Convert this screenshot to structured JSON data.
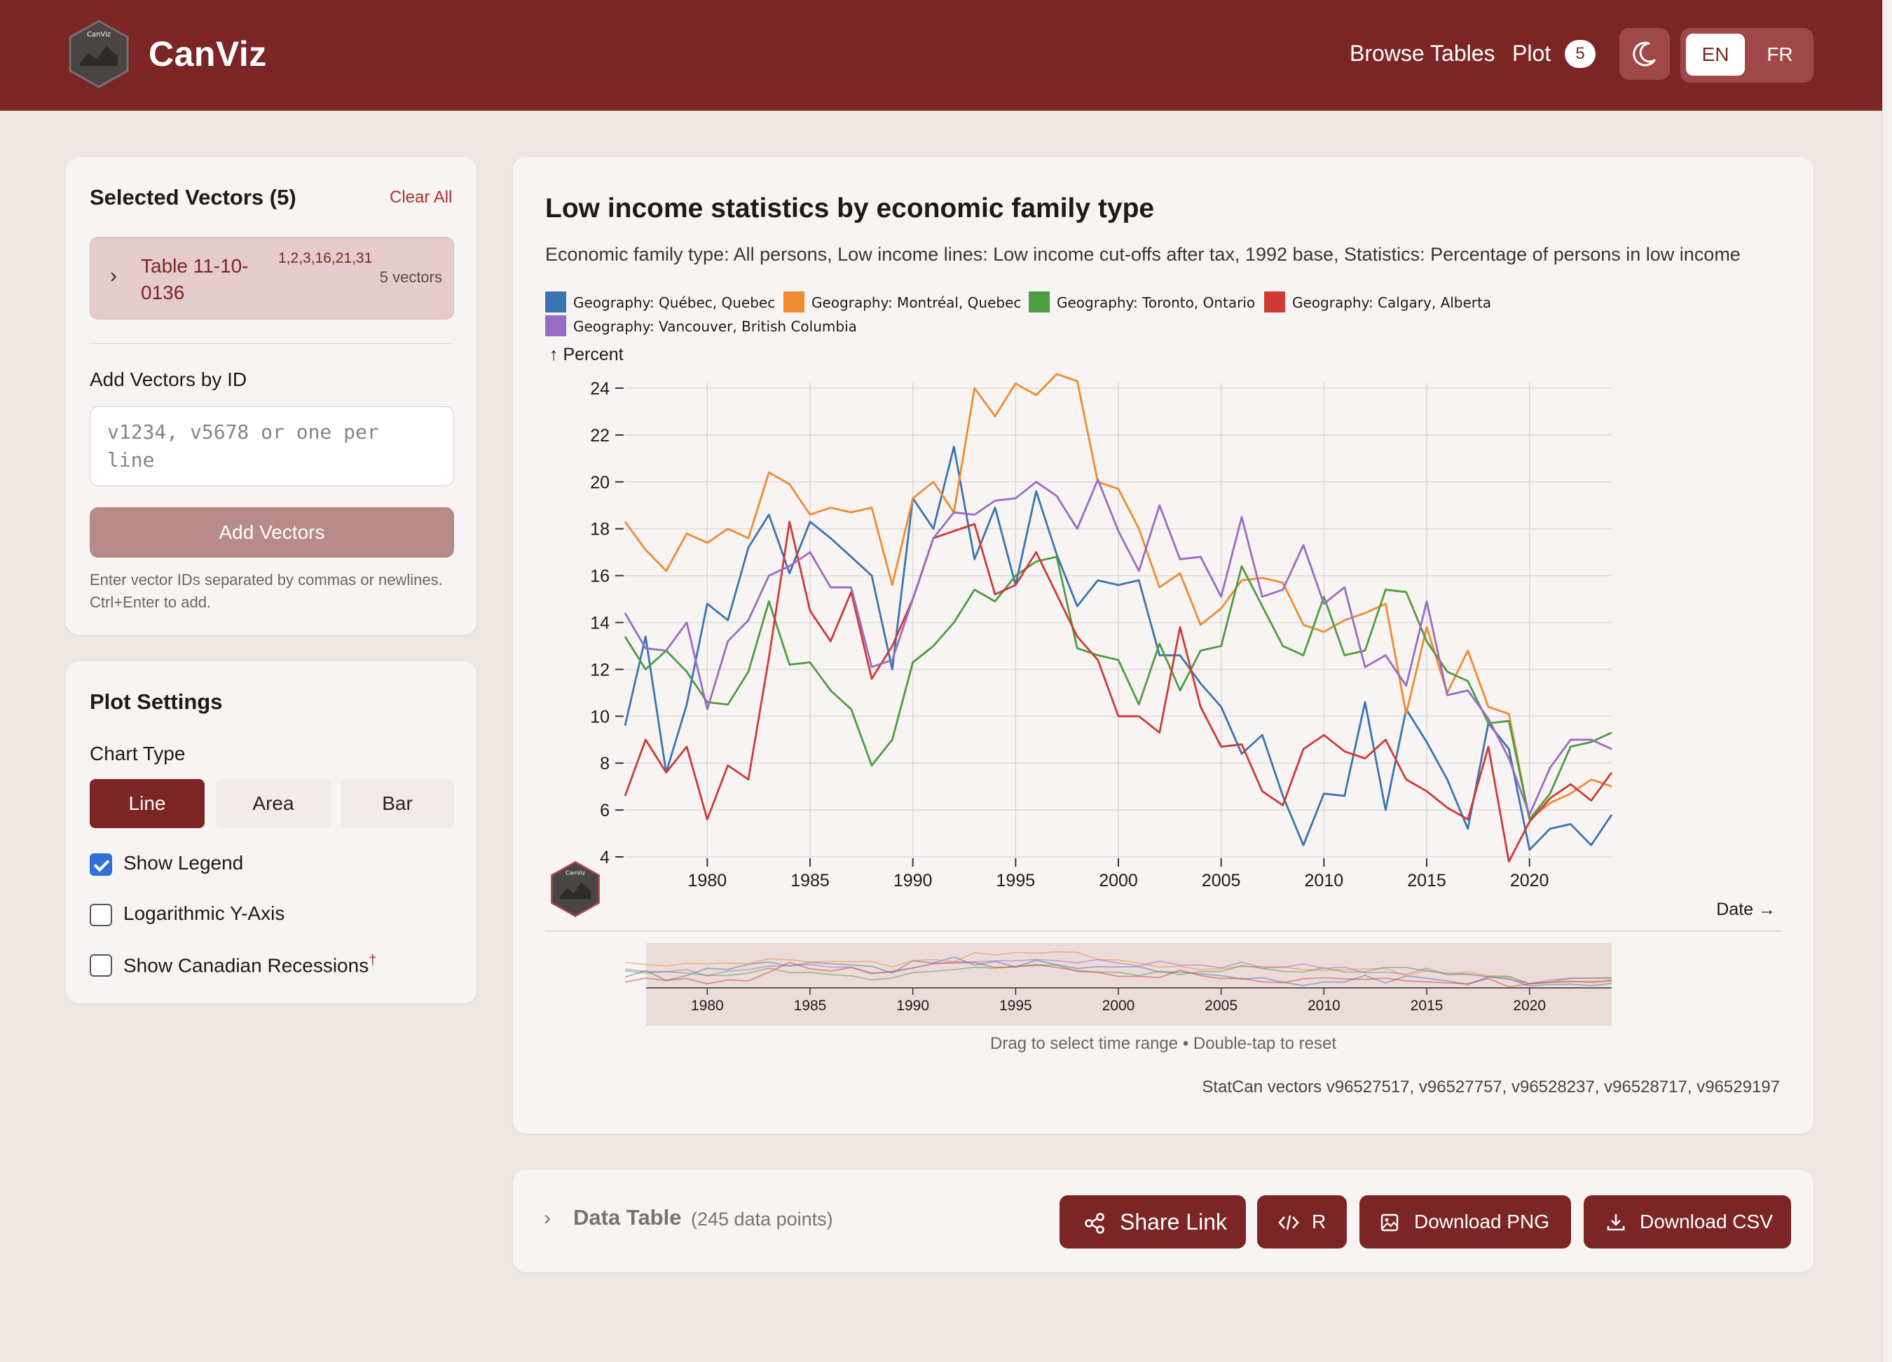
{
  "header": {
    "brand": "CanViz",
    "logo_text": "CanViz",
    "nav": {
      "browse": "Browse Tables",
      "plot": "Plot",
      "plot_count": "5"
    },
    "theme_icon": "moon-icon",
    "lang": {
      "en": "EN",
      "fr": "FR"
    }
  },
  "selected": {
    "title": "Selected Vectors (5)",
    "clear_all": "Clear All",
    "table_name": "Table 11-10-0136",
    "table_ids": "1,2,3,16,21,31",
    "table_count": "5 vectors"
  },
  "add_vectors": {
    "label": "Add Vectors by ID",
    "placeholder": "v1234, v5678 or one per line",
    "button": "Add Vectors",
    "hint": "Enter vector IDs separated by commas or newlines. Ctrl+Enter to add."
  },
  "plot_settings": {
    "title": "Plot Settings",
    "chart_type_label": "Chart Type",
    "types": [
      "Line",
      "Area",
      "Bar"
    ],
    "selected_type": "Line",
    "show_legend": "Show Legend",
    "log_axis": "Logarithmic Y-Axis",
    "recessions": "Show Canadian Recessions",
    "recessions_mark": "†",
    "show_legend_checked": true,
    "log_axis_checked": false,
    "recessions_checked": false
  },
  "chart_meta": {
    "brush_caption": "Drag to select time range • Double-tap to reset",
    "vectors_note": "StatCan vectors v96527517, v96527757, v96528237, v96528717, v96529197"
  },
  "data_table": {
    "title": "Data Table",
    "count": "(245 data points)",
    "buttons": {
      "share": "Share Link",
      "r": "R",
      "png": "Download PNG",
      "csv": "Download CSV"
    }
  },
  "colors": {
    "brand": "#7b2525",
    "series": [
      "#3a74b4",
      "#f28a32",
      "#4c9e3f",
      "#d03a34",
      "#9a6bc4"
    ]
  },
  "chart_data": {
    "type": "line",
    "title": "Low income statistics by economic family type",
    "subtitle": "Economic family type: All persons, Low income lines: Low income cut-offs after tax, 1992 base, Statistics: Percentage of persons in low income",
    "xlabel": "Date",
    "ylabel": "Percent",
    "xlim": [
      1976,
      2024
    ],
    "ylim": [
      4,
      24
    ],
    "xticks": [
      1980,
      1985,
      1990,
      1995,
      2000,
      2005,
      2010,
      2015,
      2020
    ],
    "yticks": [
      4,
      6,
      8,
      10,
      12,
      14,
      16,
      18,
      20,
      22,
      24
    ],
    "legend": "top-left",
    "grid": true,
    "x": [
      1976,
      1977,
      1978,
      1979,
      1980,
      1981,
      1982,
      1983,
      1984,
      1985,
      1986,
      1987,
      1988,
      1989,
      1990,
      1991,
      1992,
      1993,
      1994,
      1995,
      1996,
      1997,
      1998,
      1999,
      2000,
      2001,
      2002,
      2003,
      2004,
      2005,
      2006,
      2007,
      2008,
      2009,
      2010,
      2011,
      2012,
      2013,
      2014,
      2015,
      2016,
      2017,
      2018,
      2019,
      2020,
      2021,
      2022,
      2023,
      2024
    ],
    "series": [
      {
        "name": "Geography: Québec, Quebec",
        "values": [
          9.6,
          13.4,
          7.6,
          10.5,
          14.8,
          14.1,
          17.2,
          18.6,
          16.1,
          18.3,
          17.6,
          16.8,
          16.0,
          12.0,
          19.3,
          18.0,
          21.5,
          16.7,
          18.9,
          15.6,
          19.6,
          16.9,
          14.7,
          15.8,
          15.6,
          15.8,
          12.6,
          12.6,
          11.4,
          10.4,
          8.4,
          9.2,
          6.6,
          4.5,
          6.7,
          6.6,
          10.6,
          6.0,
          10.3,
          8.9,
          7.3,
          5.2,
          9.7,
          8.6,
          4.3,
          5.2,
          5.4,
          4.5,
          5.8
        ]
      },
      {
        "name": "Geography: Montréal, Quebec",
        "values": [
          18.3,
          17.1,
          16.2,
          17.8,
          17.4,
          18.0,
          17.6,
          20.4,
          19.9,
          18.6,
          18.9,
          18.7,
          18.9,
          15.6,
          19.3,
          20.0,
          18.7,
          24.0,
          22.8,
          24.2,
          23.7,
          24.6,
          24.3,
          20.0,
          19.7,
          18.0,
          15.5,
          16.1,
          13.9,
          14.6,
          15.8,
          15.9,
          15.7,
          13.9,
          13.6,
          14.1,
          14.4,
          14.8,
          10.1,
          13.8,
          11.0,
          12.8,
          10.4,
          10.1,
          5.6,
          6.3,
          6.7,
          7.3,
          7.0
        ]
      },
      {
        "name": "Geography: Toronto, Ontario",
        "values": [
          13.4,
          12.0,
          12.8,
          11.9,
          10.6,
          10.5,
          11.9,
          14.9,
          12.2,
          12.3,
          11.1,
          10.3,
          7.9,
          9.0,
          12.3,
          13.0,
          14.0,
          15.4,
          14.9,
          16.0,
          16.6,
          16.8,
          12.9,
          12.6,
          12.4,
          10.5,
          13.1,
          11.1,
          12.8,
          13.0,
          16.4,
          14.7,
          13.0,
          12.6,
          15.1,
          12.6,
          12.8,
          15.4,
          15.3,
          13.2,
          11.9,
          11.5,
          9.7,
          9.8,
          5.6,
          6.7,
          8.7,
          8.9,
          9.3
        ]
      },
      {
        "name": "Geography: Calgary, Alberta",
        "values": [
          6.6,
          9.0,
          7.6,
          8.7,
          5.6,
          7.9,
          7.3,
          12.5,
          18.3,
          14.5,
          13.2,
          15.3,
          11.6,
          13.0,
          15.0,
          17.6,
          17.9,
          18.2,
          15.2,
          15.6,
          17.0,
          15.2,
          13.4,
          12.4,
          10.0,
          10.0,
          9.3,
          13.8,
          10.4,
          8.7,
          8.8,
          6.8,
          6.2,
          8.6,
          9.2,
          8.5,
          8.2,
          9.0,
          7.3,
          6.8,
          6.1,
          5.6,
          8.7,
          3.8,
          5.5,
          6.5,
          7.1,
          6.4,
          7.6
        ]
      },
      {
        "name": "Geography: Vancouver, British Columbia",
        "values": [
          14.4,
          12.9,
          12.8,
          14.0,
          10.3,
          13.2,
          14.1,
          16.0,
          16.4,
          17.0,
          15.5,
          15.5,
          12.1,
          12.4,
          15.0,
          17.6,
          18.7,
          18.6,
          19.2,
          19.3,
          20.0,
          19.4,
          18.0,
          20.1,
          17.9,
          16.2,
          19.0,
          16.7,
          16.8,
          15.1,
          18.5,
          15.1,
          15.4,
          17.3,
          14.8,
          15.5,
          12.1,
          12.6,
          11.3,
          14.9,
          10.9,
          11.1,
          9.9,
          8.2,
          5.8,
          7.8,
          9.0,
          9.0,
          8.6
        ]
      }
    ]
  }
}
